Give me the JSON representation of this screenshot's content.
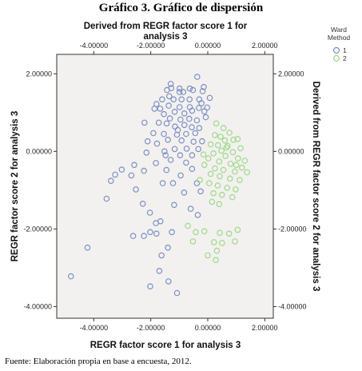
{
  "title": "Gráfico 3. Gráfico de dispersión",
  "source": "Fuente: Elaboración propia en base a encuesta, 2012.",
  "chart_data": {
    "type": "scatter",
    "xlabel": "REGR factor score   1 for analysis 3",
    "top_xlabel_line1": "Derived from REGR factor score   1 for",
    "top_xlabel_line2": "analysis 3",
    "ylabel": "REGR factor score   2 for analysis 3",
    "right_ylabel": "Derived from REGR factor score   2 for analysis 3",
    "xlim": [
      -5.3,
      2.3
    ],
    "ylim": [
      -4.3,
      2.5
    ],
    "xticks": [
      -4,
      -2,
      0,
      2
    ],
    "yticks": [
      -4,
      -2,
      0,
      2
    ],
    "xtick_labels": [
      "-4.00000",
      "-2.00000",
      "0.00000",
      "2.00000"
    ],
    "ytick_labels": [
      "-4.00000",
      "-2.00000",
      "0.00000",
      "2.00000"
    ],
    "plot_background": "#f2f1ef",
    "legend": {
      "title_line1": "Ward",
      "title_line2": "Method",
      "position": "right-top"
    },
    "series": [
      {
        "name": "1",
        "color": "#7f8fc4",
        "points": [
          [
            -0.99,
            1.62
          ],
          [
            -0.37,
            1.92
          ],
          [
            -0.52,
            1.58
          ],
          [
            -0.63,
            1.62
          ],
          [
            -0.14,
            1.66
          ],
          [
            -1.3,
            1.74
          ],
          [
            -1.28,
            1.63
          ],
          [
            -1.43,
            1.58
          ],
          [
            -0.99,
            1.53
          ],
          [
            -0.86,
            1.53
          ],
          [
            -1.35,
            1.42
          ],
          [
            -0.92,
            1.34
          ],
          [
            -1.2,
            1.34
          ],
          [
            -1.6,
            1.34
          ],
          [
            -0.64,
            1.34
          ],
          [
            -0.3,
            1.34
          ],
          [
            0.07,
            1.38
          ],
          [
            -0.22,
            1.24
          ],
          [
            -1.8,
            1.22
          ],
          [
            -1.37,
            1.18
          ],
          [
            -0.99,
            1.14
          ],
          [
            -0.63,
            1.14
          ],
          [
            -0.02,
            1.13
          ],
          [
            -0.31,
            1.12
          ],
          [
            -1.67,
            1.1
          ],
          [
            -1.87,
            1.1
          ],
          [
            -1.54,
            0.96
          ],
          [
            -1.16,
            1.02
          ],
          [
            -0.82,
            0.98
          ],
          [
            -0.55,
            1.05
          ],
          [
            -0.12,
            1.03
          ],
          [
            -1.33,
            0.85
          ],
          [
            -0.96,
            0.82
          ],
          [
            -0.65,
            0.84
          ],
          [
            -0.38,
            0.8
          ],
          [
            -0.07,
            0.88
          ],
          [
            -2.22,
            0.74
          ],
          [
            -1.72,
            0.74
          ],
          [
            -1.44,
            0.72
          ],
          [
            -0.82,
            0.68
          ],
          [
            -1.15,
            0.64
          ],
          [
            -0.56,
            0.62
          ],
          [
            -1.91,
            0.47
          ],
          [
            -1.54,
            0.45
          ],
          [
            -1.08,
            0.43
          ],
          [
            -0.76,
            0.45
          ],
          [
            -0.44,
            0.47
          ],
          [
            -2.11,
            0.26
          ],
          [
            -1.4,
            0.3
          ],
          [
            -0.92,
            0.28
          ],
          [
            -0.5,
            0.25
          ],
          [
            -1.78,
            0.2
          ],
          [
            -0.2,
            0.26
          ],
          [
            -2.15,
            -0.03
          ],
          [
            -1.16,
            0.06
          ],
          [
            -0.74,
            0.07
          ],
          [
            -0.33,
            0.06
          ],
          [
            -1.52,
            0.0
          ],
          [
            -0.97,
            -0.1
          ],
          [
            -0.55,
            -0.1
          ],
          [
            -1.3,
            -0.22
          ],
          [
            -0.76,
            -0.29
          ],
          [
            -1.82,
            -0.3
          ],
          [
            -2.58,
            -0.35
          ],
          [
            -3.02,
            -0.47
          ],
          [
            -2.68,
            -0.62
          ],
          [
            -3.25,
            -0.6
          ],
          [
            -3.4,
            -0.76
          ],
          [
            -2.24,
            -0.5
          ],
          [
            -1.45,
            -0.48
          ],
          [
            -0.55,
            -0.45
          ],
          [
            -0.95,
            -0.62
          ],
          [
            -1.22,
            -0.82
          ],
          [
            -1.58,
            -0.82
          ],
          [
            -0.38,
            -0.82
          ],
          [
            -2.52,
            -0.98
          ],
          [
            -0.83,
            -1.06
          ],
          [
            -0.25,
            -1.03
          ],
          [
            -1.18,
            -1.38
          ],
          [
            -3.55,
            -1.22
          ],
          [
            -2.28,
            -1.35
          ],
          [
            -2.03,
            -1.58
          ],
          [
            -0.6,
            -1.48
          ],
          [
            -1.66,
            -1.8
          ],
          [
            -0.35,
            -1.64
          ],
          [
            -1.82,
            -1.85
          ],
          [
            -2.02,
            -2.08
          ],
          [
            -2.62,
            -2.18
          ],
          [
            -2.24,
            -2.18
          ],
          [
            -1.8,
            -2.12
          ],
          [
            -1.26,
            -2.08
          ],
          [
            -1.4,
            -2.48
          ],
          [
            -1.62,
            -2.68
          ],
          [
            -4.22,
            -2.48
          ],
          [
            -4.8,
            -3.22
          ],
          [
            -1.7,
            -3.08
          ],
          [
            -1.38,
            -3.35
          ],
          [
            -2.02,
            -3.48
          ],
          [
            -1.08,
            -3.65
          ],
          [
            -1.48,
            -0.1
          ],
          [
            -1.05,
            0.55
          ],
          [
            -0.3,
            0.6
          ],
          [
            -0.18,
            1.55
          ]
        ]
      },
      {
        "name": "2",
        "color": "#9fd88a",
        "points": [
          [
            0.55,
            0.6
          ],
          [
            0.76,
            0.48
          ],
          [
            0.25,
            0.42
          ],
          [
            0.45,
            0.38
          ],
          [
            0.9,
            0.3
          ],
          [
            0.6,
            0.28
          ],
          [
            1.05,
            0.32
          ],
          [
            0.1,
            0.18
          ],
          [
            0.36,
            0.16
          ],
          [
            0.7,
            0.14
          ],
          [
            1.15,
            0.08
          ],
          [
            0.48,
            0.02
          ],
          [
            0.88,
            -0.02
          ],
          [
            0.2,
            -0.05
          ],
          [
            0.62,
            -0.12
          ],
          [
            1.06,
            -0.18
          ],
          [
            1.3,
            -0.24
          ],
          [
            0.02,
            -0.18
          ],
          [
            0.4,
            -0.26
          ],
          [
            0.8,
            -0.32
          ],
          [
            1.2,
            -0.42
          ],
          [
            -0.12,
            -0.35
          ],
          [
            0.25,
            -0.44
          ],
          [
            0.55,
            -0.48
          ],
          [
            0.95,
            -0.52
          ],
          [
            1.38,
            -0.54
          ],
          [
            0.1,
            -0.58
          ],
          [
            0.42,
            -0.64
          ],
          [
            0.78,
            -0.7
          ],
          [
            1.12,
            -0.74
          ],
          [
            -0.28,
            -0.74
          ],
          [
            0.05,
            -0.82
          ],
          [
            0.35,
            -0.88
          ],
          [
            0.68,
            -0.94
          ],
          [
            0.98,
            -0.98
          ],
          [
            0.2,
            -1.08
          ],
          [
            0.5,
            -1.12
          ],
          [
            0.86,
            -1.18
          ],
          [
            0.15,
            -1.3
          ],
          [
            0.4,
            -1.36
          ],
          [
            -0.7,
            -1.92
          ],
          [
            -0.42,
            -2.08
          ],
          [
            -0.12,
            -2.06
          ],
          [
            0.42,
            -2.1
          ],
          [
            0.75,
            -2.12
          ],
          [
            1.05,
            -2.02
          ],
          [
            -0.52,
            -2.32
          ],
          [
            0.22,
            -2.34
          ],
          [
            0.5,
            -2.36
          ],
          [
            0.95,
            -2.32
          ],
          [
            0.32,
            -2.56
          ],
          [
            0.0,
            -2.68
          ],
          [
            0.28,
            -2.8
          ],
          [
            -0.15,
            -0.08
          ],
          [
            0.66,
            0.1
          ],
          [
            1.0,
            -0.35
          ],
          [
            0.3,
            0.72
          ]
        ]
      }
    ]
  }
}
